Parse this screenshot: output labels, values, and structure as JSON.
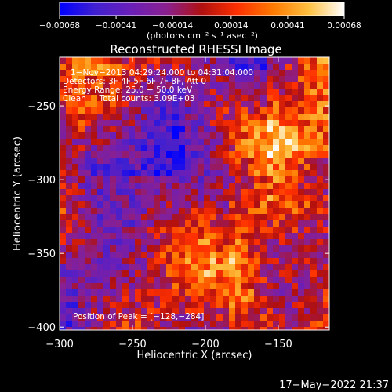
{
  "chart_data": {
    "type": "heatmap",
    "title": "Reconstructed RHESSI Image",
    "xlabel": "Heliocentric X (arcsec)",
    "ylabel": "Heliocentric Y (arcsec)",
    "xlim": [
      -300,
      -115
    ],
    "ylim": [
      -402,
      -217
    ],
    "x_ticks": [
      -300,
      -250,
      -200,
      -150
    ],
    "x_tick_labels": [
      "−300",
      "−250",
      "−200",
      "−150"
    ],
    "y_ticks": [
      -250,
      -300,
      -350,
      -400
    ],
    "y_tick_labels": [
      "−250",
      "−300",
      "−350",
      "−400"
    ],
    "colorbar": {
      "range": [
        -0.00068,
        0.00068
      ],
      "ticks": [
        -0.00068,
        -0.00041,
        -0.00014,
        0.00014,
        0.00041,
        0.00068
      ],
      "tick_labels": [
        "−0.00068",
        "−0.00041",
        "−0.00014",
        "0.00014",
        "0.00041",
        "0.00068"
      ],
      "unit_label": "(photons cm⁻² s⁻¹ asec⁻²)",
      "colors": [
        "#0000ff",
        "#4020d0",
        "#6a1fb8",
        "#8a2090",
        "#b01010",
        "#ff3000",
        "#ff7a00",
        "#ffc040",
        "#ffffff"
      ]
    },
    "annotations": [
      "1−Nov−2013 04:29:24.000 to 04:31:04.000",
      "Detectors: 3F 4F 5F 6F 7F 8F, Att 0",
      "Energy Range: 25.0 − 50.0 keV",
      "Clean     Total counts: 3.09E+03"
    ],
    "peak_label": "Position of Peak = [−128,−284]",
    "peak_position": [
      -128,
      -284
    ]
  },
  "footer": {
    "timestamp": "17−May−2022 21:37"
  }
}
